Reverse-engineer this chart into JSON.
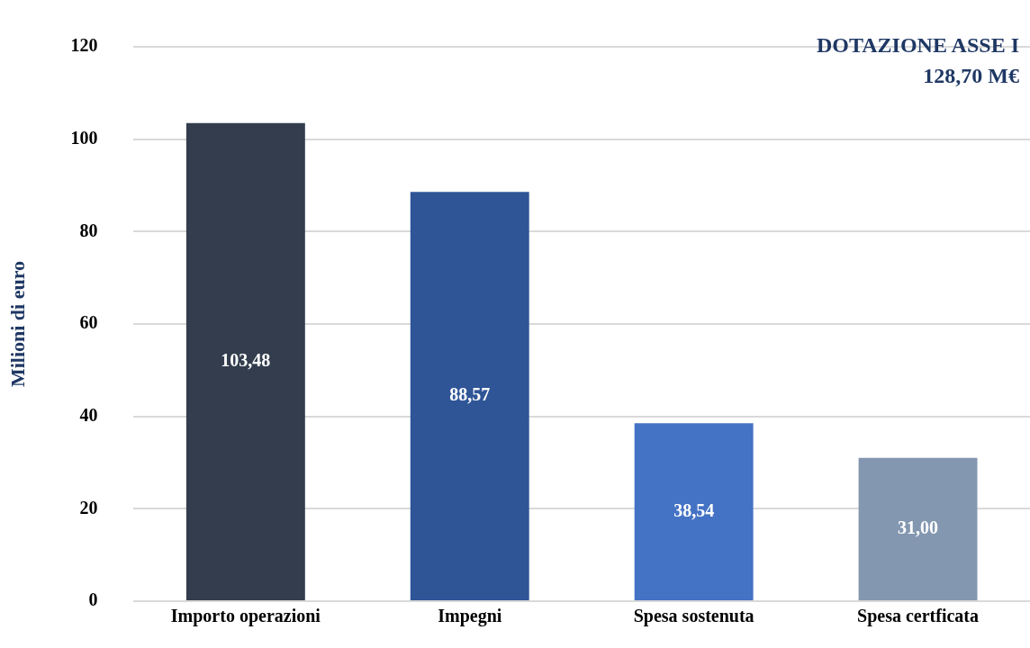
{
  "chart_data": {
    "type": "bar",
    "ylabel": "Milioni di euro",
    "categories": [
      "Importo operazioni",
      "Impegni",
      "Spesa sostenuta",
      "Spesa certficata"
    ],
    "values": [
      103.48,
      88.57,
      38.54,
      31.0
    ],
    "colors": [
      "#333d4d",
      "#2f5597",
      "#4472c4",
      "#8497b0"
    ],
    "value_labels": [
      "103,48",
      "88,57",
      "38,54",
      "31,00"
    ],
    "ylim": [
      0,
      120
    ],
    "yticks": [
      0,
      20,
      40,
      60,
      80,
      100,
      120
    ],
    "grid": "y",
    "legend": false,
    "annotations": [
      "DOTAZIONE ASSE I",
      "128,70 M€"
    ]
  }
}
